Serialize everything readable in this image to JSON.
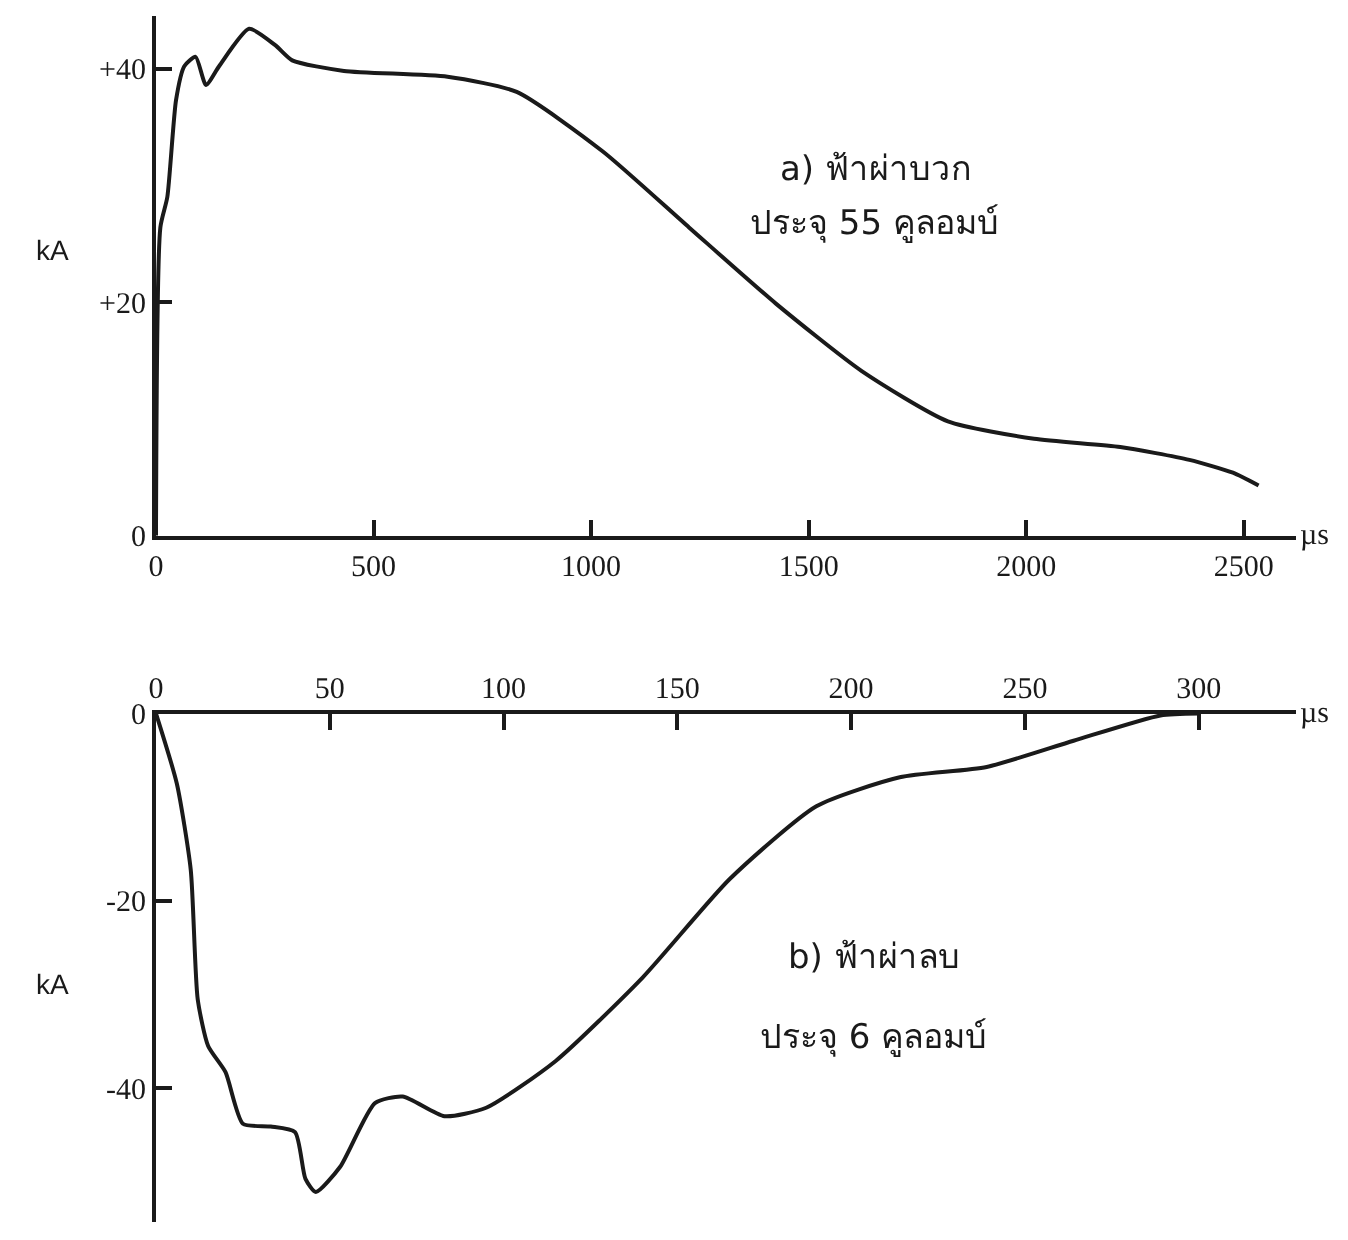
{
  "chart_data": [
    {
      "type": "line",
      "xlabel": "µs",
      "ylabel": "kA",
      "annotations": [
        "a) ฟ้าผ่าบวก",
        "ประจุ 55 คูลอมบ์"
      ],
      "series": [
        {
          "color": "#1a1a1a",
          "x": [
            0,
            10,
            26,
            46,
            65,
            91,
            115,
            145,
            214,
            274,
            313,
            432,
            670,
            829,
            1027,
            1225,
            1424,
            1622,
            1820,
            2018,
            2216,
            2375,
            2475,
            2534
          ],
          "values": [
            0,
            26.4,
            29,
            37.3,
            40.2,
            41,
            38.6,
            40.2,
            43.4,
            42,
            40.7,
            39.8,
            39.3,
            38,
            32.9,
            26.4,
            19.9,
            14.1,
            9.8,
            8.3,
            7.6,
            6.5,
            5.4,
            4.3
          ]
        }
      ],
      "xlim": [
        0,
        2620
      ],
      "xticks": [
        0,
        500,
        1000,
        1500,
        2000,
        2500
      ],
      "ylim": [
        0,
        44.5
      ],
      "yticks": [
        0,
        {
          "value": 20,
          "label": "+20"
        },
        {
          "value": 40,
          "label": "+40"
        }
      ],
      "marker": "none",
      "line_style": "solid"
    },
    {
      "type": "line",
      "xlabel": "µs",
      "ylabel": "kA",
      "annotations": [
        "b) ฟ้าผ่าลบ",
        "ประจุ 6 คูลอมบ์"
      ],
      "series": [
        {
          "color": "#1a1a1a",
          "x": [
            0,
            6,
            10,
            12,
            15,
            20,
            25,
            33,
            40,
            43,
            46,
            53,
            63,
            71,
            83,
            95,
            115,
            140,
            165,
            190,
            214,
            239,
            264,
            289,
            300
          ],
          "values": [
            0,
            -7.5,
            -16.7,
            -30.5,
            -35.5,
            -38.3,
            -43.8,
            -44.1,
            -44.7,
            -49.7,
            -51.1,
            -48.4,
            -41.6,
            -40.9,
            -43,
            -42.1,
            -37.1,
            -28.2,
            -17.7,
            -9.9,
            -6.8,
            -5.7,
            -2.9,
            -0.2,
            0
          ]
        }
      ],
      "xlim": [
        0,
        328
      ],
      "xticks": [
        0,
        50,
        100,
        150,
        200,
        250,
        300
      ],
      "ylim": [
        -54.3,
        0
      ],
      "yticks": [
        0,
        -20,
        -40
      ],
      "marker": "none",
      "line_style": "solid"
    }
  ]
}
